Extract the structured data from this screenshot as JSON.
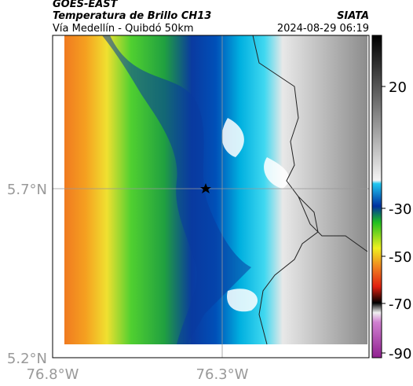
{
  "header": {
    "source": "GOES-EAST",
    "title": "Temperatura de Brillo CH13",
    "subtitle": "Vía Medellín - Quibdó 50km",
    "credit": "SIATA",
    "timestamp": "2024-08-29 06:19"
  },
  "map": {
    "lat_labels": [
      "5.7°N",
      "5.2°N"
    ],
    "lon_labels": [
      "76.8°W",
      "76.3°W"
    ]
  },
  "colorbar": {
    "ticks": [
      20,
      -30,
      -50,
      -70,
      -90
    ]
  }
}
